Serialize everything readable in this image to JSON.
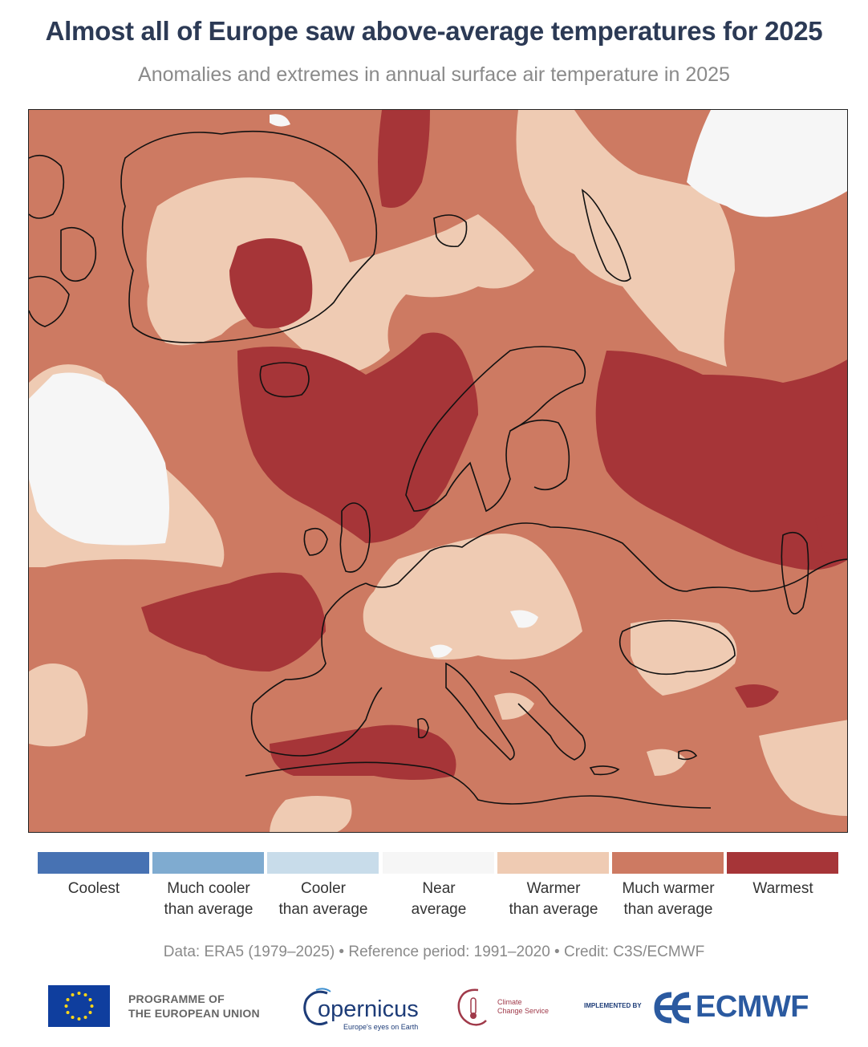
{
  "title": "Almost all of Europe saw above-average temperatures for 2025",
  "subtitle": "Anomalies and extremes in annual surface air temperature in 2025",
  "map": {
    "region": "Europe",
    "year": 2025,
    "colors": {
      "warmest": "#a63538",
      "much_warmer": "#cd7a62",
      "warmer": "#efcbb3",
      "near": "#f6f6f6",
      "coastline": "#111111"
    }
  },
  "legend": {
    "items": [
      {
        "label_line1": "Coolest",
        "label_line2": "",
        "color": "#4772b3"
      },
      {
        "label_line1": "Much cooler",
        "label_line2": "than average",
        "color": "#7fabd0"
      },
      {
        "label_line1": "Cooler",
        "label_line2": "than average",
        "color": "#c8dcea"
      },
      {
        "label_line1": "Near",
        "label_line2": "average",
        "color": "#f6f6f6"
      },
      {
        "label_line1": "Warmer",
        "label_line2": "than average",
        "color": "#efcbb3"
      },
      {
        "label_line1": "Much warmer",
        "label_line2": "than average",
        "color": "#cd7a62"
      },
      {
        "label_line1": "Warmest",
        "label_line2": "",
        "color": "#a63538"
      }
    ]
  },
  "credit": "Data: ERA5 (1979–2025) • Reference period: 1991–2020 • Credit: C3S/ECMWF",
  "logos": {
    "eu_line1": "PROGRAMME OF",
    "eu_line2": "THE EUROPEAN UNION",
    "copernicus_word": "opernicus",
    "copernicus_tagline": "Europe's eyes on Earth",
    "c3s_line1": "Climate",
    "c3s_line2": "Change Service",
    "implemented_by": "IMPLEMENTED BY",
    "ecmwf": "ECMWF"
  }
}
